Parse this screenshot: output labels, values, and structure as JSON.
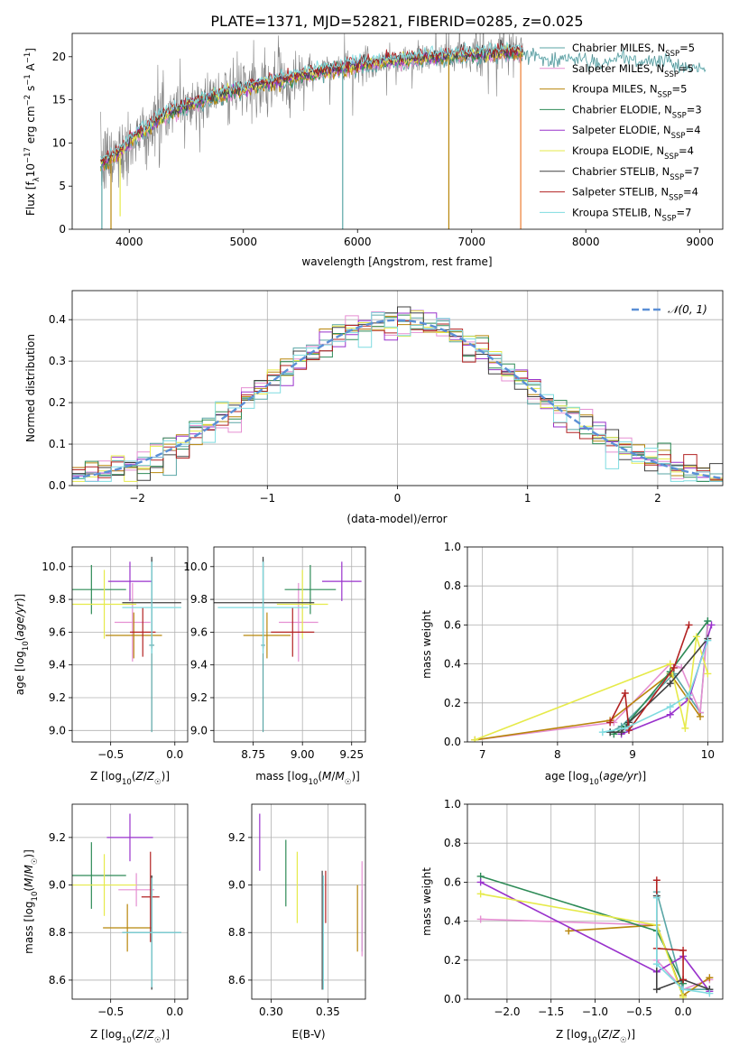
{
  "figure": {
    "title": "PLATE=1371, MJD=52821, FIBERID=0285, z=0.025"
  },
  "colors": {
    "Chabrier MILES": "#5aa6a6",
    "Salpeter MILES": "#e58fd2",
    "Kroupa MILES": "#b8860b",
    "Chabrier ELODIE": "#2e8b57",
    "Salpeter ELODIE": "#9932cc",
    "Kroupa ELODIE": "#e6ea4a",
    "Chabrier STELIB": "#404040",
    "Salpeter STELIB": "#b22222",
    "Kroupa STELIB": "#7fdbe0",
    "normal_curve": "#5b8fd6",
    "observed_spectrum": "#808080",
    "Kroupa_line_highlight": "#ed7d31"
  },
  "chart_data": [
    {
      "type": "line",
      "id": "spectrum",
      "xlabel": "wavelength [Angstrom, rest frame]",
      "ylabel": "Flux [f_λ10^-17 erg cm^-2 s^-1 A^-1]",
      "xlim": [
        3500,
        9200
      ],
      "ylim": [
        0,
        22.7
      ],
      "xticks": [
        4000,
        5000,
        6000,
        7000,
        8000,
        9000
      ],
      "yticks": [
        0,
        5,
        10,
        15,
        20
      ],
      "grid": false,
      "legend_position": "top-right",
      "legend": [
        "Chabrier MILES, N_SSP=5",
        "Salpeter MILES, N_SSP=5",
        "Kroupa MILES, N_SSP=5",
        "Chabrier ELODIE, N_SSP=3",
        "Salpeter ELODIE, N_SSP=4",
        "Kroupa ELODIE, N_SSP=4",
        "Chabrier STELIB, N_SSP=7",
        "Salpeter STELIB, N_SSP=4",
        "Kroupa STELIB, N_SSP=7"
      ],
      "continuum": {
        "wavelength": [
          3750,
          3850,
          3950,
          4050,
          4150,
          4300,
          4500,
          4700,
          4900,
          5100,
          5300,
          5500,
          5700,
          5900,
          6100,
          6300,
          6500,
          6700,
          6900,
          7100,
          7300,
          7450
        ],
        "flux": [
          7.5,
          8.3,
          9.3,
          10.8,
          11.6,
          13.2,
          14.4,
          15.2,
          16.0,
          16.6,
          17.2,
          17.8,
          18.3,
          18.8,
          19.2,
          19.5,
          19.8,
          20.0,
          20.2,
          20.3,
          20.5,
          20.6
        ]
      },
      "model_extension": {
        "wavelength": [
          7450,
          7700,
          7900,
          8100,
          8300,
          8500,
          8700,
          8900,
          9050
        ],
        "flux": [
          20.5,
          19.5,
          20.0,
          19.0,
          19.8,
          19.3,
          19.6,
          18.8,
          18.6
        ]
      },
      "spikes": [
        {
          "wavelength": 3760,
          "flux": 0
        },
        {
          "wavelength": 3840,
          "flux": 0
        },
        {
          "wavelength": 3920,
          "flux": 1.5
        },
        {
          "wavelength": 5870,
          "flux": 0
        },
        {
          "wavelength": 6800,
          "flux": 0
        },
        {
          "wavelength": 7430,
          "flux": 0
        }
      ]
    },
    {
      "type": "histogram",
      "id": "residuals",
      "xlabel": "(data-model)/error",
      "ylabel": "Normed distribution",
      "xlim": [
        -2.5,
        2.5
      ],
      "ylim": [
        0,
        0.47
      ],
      "xticks": [
        -2,
        -1,
        0,
        1,
        2
      ],
      "yticks": [
        0.0,
        0.1,
        0.2,
        0.3,
        0.4
      ],
      "grid": true,
      "legend": [
        "N(0, 1)"
      ],
      "legend_position": "top-right"
    },
    {
      "type": "scatter",
      "id": "age_vs_Z",
      "xlabel": "Z [log10(Z/Z☉)]",
      "ylabel": "age [log10(age/yr)]",
      "xlim": [
        -0.8,
        0.1
      ],
      "ylim": [
        8.93,
        10.12
      ],
      "xticks": [
        -0.5,
        0.0
      ],
      "yticks": [
        9.0,
        9.2,
        9.4,
        9.6,
        9.8,
        10.0
      ],
      "grid": true,
      "points": [
        {
          "model": "Chabrier MILES",
          "x": -0.18,
          "xerr": 0.02,
          "y": 9.52,
          "yerr": 0.53
        },
        {
          "model": "Salpeter MILES",
          "x": -0.33,
          "xerr": 0.14,
          "y": 9.66,
          "yerr": 0.24
        },
        {
          "model": "Kroupa MILES",
          "x": -0.32,
          "xerr": 0.22,
          "y": 9.58,
          "yerr": 0.14
        },
        {
          "model": "Chabrier ELODIE",
          "x": -0.65,
          "xerr": 0.27,
          "y": 9.86,
          "yerr": 0.15
        },
        {
          "model": "Salpeter ELODIE",
          "x": -0.35,
          "xerr": 0.17,
          "y": 9.91,
          "yerr": 0.12
        },
        {
          "model": "Kroupa ELODIE",
          "x": -0.55,
          "xerr": 0.25,
          "y": 9.77,
          "yerr": 0.21
        },
        {
          "model": "Chabrier STELIB",
          "x": -0.18,
          "xerr": 0.23,
          "y": 9.78,
          "yerr": 0.28
        },
        {
          "model": "Salpeter STELIB",
          "x": -0.25,
          "xerr": 0.1,
          "y": 9.6,
          "yerr": 0.15
        },
        {
          "model": "Kroupa STELIB",
          "x": -0.18,
          "xerr": 0.23,
          "y": 9.75,
          "yerr": 0.28
        }
      ]
    },
    {
      "type": "scatter",
      "id": "age_vs_mass",
      "xlabel": "mass [log10(M/M☉)]",
      "ylabel": "",
      "xlim": [
        8.55,
        9.32
      ],
      "ylim": [
        8.93,
        10.12
      ],
      "xticks": [
        8.75,
        9.0,
        9.25
      ],
      "yticks": [
        9.0,
        9.2,
        9.4,
        9.6,
        9.8,
        10.0
      ],
      "grid": true,
      "points": [
        {
          "model": "Chabrier MILES",
          "x": 8.8,
          "xerr": 0.01,
          "y": 9.52,
          "yerr": 0.53
        },
        {
          "model": "Salpeter MILES",
          "x": 8.98,
          "xerr": 0.1,
          "y": 9.66,
          "yerr": 0.24
        },
        {
          "model": "Kroupa MILES",
          "x": 8.82,
          "xerr": 0.12,
          "y": 9.58,
          "yerr": 0.14
        },
        {
          "model": "Chabrier ELODIE",
          "x": 9.04,
          "xerr": 0.13,
          "y": 9.86,
          "yerr": 0.15
        },
        {
          "model": "Salpeter ELODIE",
          "x": 9.2,
          "xerr": 0.1,
          "y": 9.91,
          "yerr": 0.12
        },
        {
          "model": "Kroupa ELODIE",
          "x": 9.0,
          "xerr": 0.13,
          "y": 9.77,
          "yerr": 0.21
        },
        {
          "model": "Chabrier STELIB",
          "x": 8.8,
          "xerr": 0.26,
          "y": 9.78,
          "yerr": 0.28
        },
        {
          "model": "Salpeter STELIB",
          "x": 8.95,
          "xerr": 0.11,
          "y": 9.6,
          "yerr": 0.15
        },
        {
          "model": "Kroupa STELIB",
          "x": 8.8,
          "xerr": 0.23,
          "y": 9.75,
          "yerr": 0.28
        }
      ]
    },
    {
      "type": "line",
      "id": "massweight_vs_age",
      "xlabel": "age [log10(age/yr)]",
      "ylabel": "mass weight",
      "xlim": [
        6.8,
        10.2
      ],
      "ylim": [
        0,
        1
      ],
      "xticks": [
        7,
        8,
        9,
        10
      ],
      "yticks": [
        0.0,
        0.2,
        0.4,
        0.6,
        0.8,
        1.0
      ],
      "grid": true,
      "series": [
        {
          "model": "Chabrier MILES",
          "x": [
            8.7,
            8.85,
            9.55,
            9.9,
            10.0
          ],
          "y": [
            0.05,
            0.08,
            0.35,
            0.15,
            0.62
          ]
        },
        {
          "model": "Salpeter MILES",
          "x": [
            6.9,
            8.75,
            9.5,
            9.65,
            9.9,
            10.0
          ],
          "y": [
            0.01,
            0.1,
            0.4,
            0.38,
            0.15,
            0.6
          ]
        },
        {
          "model": "Kroupa MILES",
          "x": [
            6.9,
            8.7,
            9.5,
            9.9
          ],
          "y": [
            0.01,
            0.11,
            0.35,
            0.13
          ]
        },
        {
          "model": "Chabrier ELODIE",
          "x": [
            8.75,
            8.9,
            9.5,
            10.0
          ],
          "y": [
            0.04,
            0.08,
            0.36,
            0.62
          ]
        },
        {
          "model": "Salpeter ELODIE",
          "x": [
            8.85,
            9.5,
            9.75,
            10.05
          ],
          "y": [
            0.04,
            0.14,
            0.22,
            0.6
          ]
        },
        {
          "model": "Kroupa ELODIE",
          "x": [
            6.9,
            9.5,
            9.7,
            9.85,
            10.0
          ],
          "y": [
            0.01,
            0.4,
            0.07,
            0.54,
            0.35
          ]
        },
        {
          "model": "Chabrier STELIB",
          "x": [
            8.7,
            8.85,
            8.95,
            9.5,
            10.0
          ],
          "y": [
            0.05,
            0.05,
            0.1,
            0.3,
            0.53
          ]
        },
        {
          "model": "Salpeter STELIB",
          "x": [
            8.7,
            8.9,
            8.95,
            9.55,
            9.75
          ],
          "y": [
            0.1,
            0.25,
            0.06,
            0.38,
            0.6
          ]
        },
        {
          "model": "Kroupa STELIB",
          "x": [
            8.6,
            8.9,
            9.5,
            9.75,
            10.0
          ],
          "y": [
            0.05,
            0.07,
            0.18,
            0.24,
            0.52
          ]
        }
      ]
    },
    {
      "type": "scatter",
      "id": "mass_vs_Z",
      "xlabel": "Z [log10(Z/Z☉)]",
      "ylabel": "mass [log10(M/M☉)]",
      "xlim": [
        -0.8,
        0.1
      ],
      "ylim": [
        8.52,
        9.34
      ],
      "xticks": [
        -0.5,
        0.0
      ],
      "yticks": [
        8.6,
        8.8,
        9.0,
        9.2
      ],
      "grid": true,
      "points": [
        {
          "model": "Chabrier MILES",
          "x": -0.18,
          "xerr": 0.02,
          "y": 8.8,
          "yerr": 0.24
        },
        {
          "model": "Salpeter MILES",
          "x": -0.3,
          "xerr": 0.14,
          "y": 8.98,
          "yerr": 0.07
        },
        {
          "model": "Kroupa MILES",
          "x": -0.37,
          "xerr": 0.19,
          "y": 8.82,
          "yerr": 0.1
        },
        {
          "model": "Chabrier ELODIE",
          "x": -0.65,
          "xerr": 0.27,
          "y": 9.04,
          "yerr": 0.14
        },
        {
          "model": "Salpeter ELODIE",
          "x": -0.35,
          "xerr": 0.18,
          "y": 9.2,
          "yerr": 0.1
        },
        {
          "model": "Kroupa ELODIE",
          "x": -0.55,
          "xerr": 0.25,
          "y": 9.0,
          "yerr": 0.13
        },
        {
          "model": "Chabrier STELIB",
          "x": -0.18,
          "xerr": 0.23,
          "y": 8.8,
          "yerr": 0.24
        },
        {
          "model": "Salpeter STELIB",
          "x": -0.19,
          "xerr": 0.07,
          "y": 8.95,
          "yerr": 0.19
        },
        {
          "model": "Kroupa STELIB",
          "x": -0.18,
          "xerr": 0.23,
          "y": 8.8,
          "yerr": 0.23
        }
      ]
    },
    {
      "type": "scatter",
      "id": "mass_vs_EBV",
      "xlabel": "E(B-V)",
      "ylabel": "",
      "xlim": [
        0.283,
        0.383
      ],
      "ylim": [
        8.52,
        9.34
      ],
      "xticks": [
        0.3,
        0.35
      ],
      "yticks": [
        8.6,
        8.8,
        9.0,
        9.2
      ],
      "grid": true,
      "points": [
        {
          "model": "Salpeter ELODIE",
          "x": 0.29,
          "y": 9.18,
          "yerr": 0.12
        },
        {
          "model": "Chabrier ELODIE",
          "x": 0.313,
          "y": 9.05,
          "yerr": 0.14
        },
        {
          "model": "Kroupa ELODIE",
          "x": 0.323,
          "y": 8.99,
          "yerr": 0.15
        },
        {
          "model": "Chabrier STELIB",
          "x": 0.345,
          "y": 8.81,
          "yerr": 0.25
        },
        {
          "model": "Kroupa STELIB",
          "x": 0.346,
          "y": 8.8,
          "yerr": 0.24
        },
        {
          "model": "Salpeter STELIB",
          "x": 0.348,
          "y": 8.95,
          "yerr": 0.11
        },
        {
          "model": "Kroupa MILES",
          "x": 0.376,
          "y": 8.86,
          "yerr": 0.14
        },
        {
          "model": "Chabrier MILES",
          "x": 0.38,
          "y": 8.85,
          "yerr": 0.13
        },
        {
          "model": "Salpeter MILES",
          "x": 0.38,
          "y": 8.9,
          "yerr": 0.2
        }
      ]
    },
    {
      "type": "line",
      "id": "massweight_vs_Z",
      "xlabel": "Z [log10(Z/Z☉)]",
      "ylabel": "mass weight",
      "xlim": [
        -2.45,
        0.45
      ],
      "ylim": [
        0,
        1
      ],
      "xticks": [
        -2.0,
        -1.5,
        -1.0,
        -0.5,
        0.0
      ],
      "yticks": [
        0.0,
        0.2,
        0.4,
        0.6,
        0.8,
        1.0
      ],
      "grid": true,
      "series": [
        {
          "model": "Chabrier MILES",
          "x": [
            -0.3,
            0.0,
            0.3
          ],
          "y": [
            0.55,
            0.05,
            0.05
          ]
        },
        {
          "model": "Salpeter MILES",
          "x": [
            -2.3,
            -0.3,
            -0.3,
            0.0,
            0.3
          ],
          "y": [
            0.41,
            0.38,
            0.2,
            0.05,
            0.1
          ]
        },
        {
          "model": "Kroupa MILES",
          "x": [
            -1.3,
            -0.3,
            0.0,
            0.3
          ],
          "y": [
            0.35,
            0.38,
            0.02,
            0.11
          ]
        },
        {
          "model": "Chabrier ELODIE",
          "x": [
            -2.3,
            -0.3,
            0.0
          ],
          "y": [
            0.63,
            0.35,
            0.08
          ]
        },
        {
          "model": "Salpeter ELODIE",
          "x": [
            -2.3,
            -0.3,
            0.0,
            0.3
          ],
          "y": [
            0.6,
            0.14,
            0.22,
            0.04
          ]
        },
        {
          "model": "Kroupa ELODIE",
          "x": [
            -2.3,
            -0.3,
            0.0
          ],
          "y": [
            0.54,
            0.38,
            0.01
          ]
        },
        {
          "model": "Chabrier STELIB",
          "x": [
            -0.3,
            -0.3,
            0.0,
            0.3
          ],
          "y": [
            0.53,
            0.05,
            0.1,
            0.05
          ]
        },
        {
          "model": "Salpeter STELIB",
          "x": [
            -0.3,
            -0.3,
            0.0,
            0.0
          ],
          "y": [
            0.61,
            0.26,
            0.25,
            0.1
          ]
        },
        {
          "model": "Kroupa STELIB",
          "x": [
            -0.3,
            -0.3,
            0.0,
            0.3
          ],
          "y": [
            0.52,
            0.18,
            0.05,
            0.03
          ]
        }
      ]
    }
  ]
}
